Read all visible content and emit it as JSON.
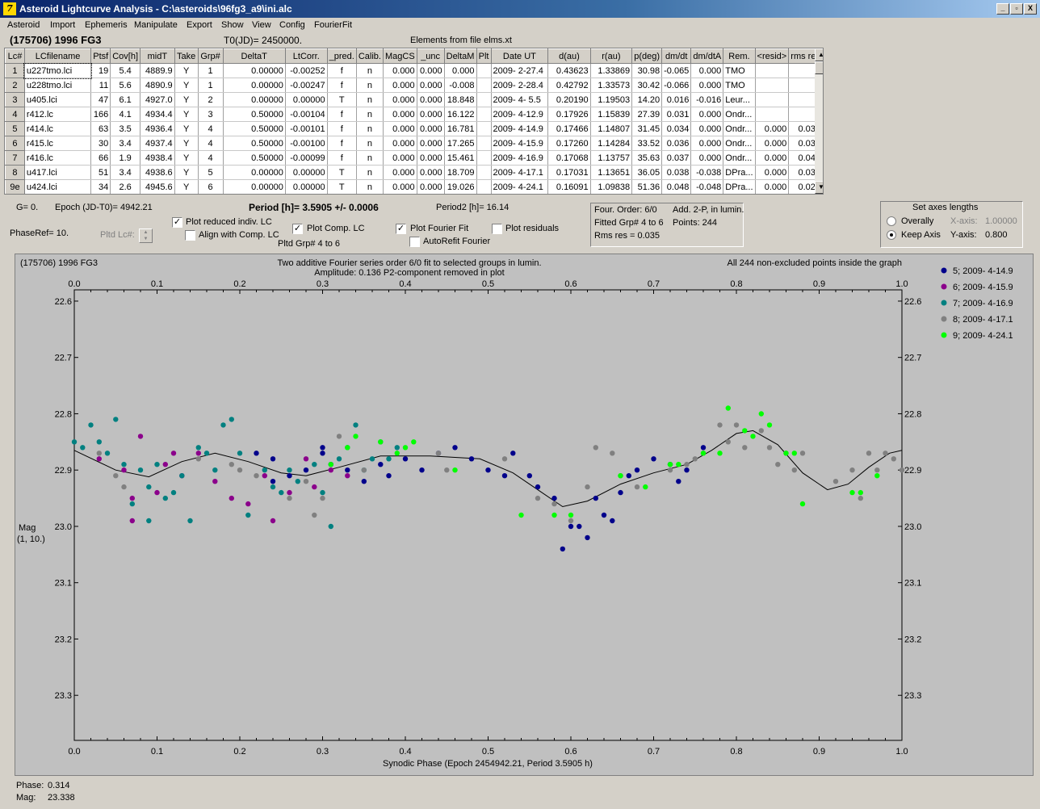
{
  "window": {
    "title": "Asteroid Lightcurve Analysis - C:\\asteroids\\96fg3_a9\\ini.alc",
    "app_icon": "7",
    "minimize": "_",
    "restore": "▫",
    "close": "X"
  },
  "menu": [
    "Asteroid",
    "Import",
    "Ephemeris",
    "Manipulate",
    "Export",
    "Show",
    "View",
    "Config",
    "FourierFit"
  ],
  "info": {
    "asteroid": "(175706) 1996 FG3",
    "t0": "T0(JD)= 2450000.",
    "elements": "Elements from file elms.xt"
  },
  "grid": {
    "headers": [
      "Lc#",
      "LCfilename",
      "Ptsf",
      "Cov[h]",
      "midT",
      "Take",
      "Grp#",
      "DeltaT",
      "LtCorr.",
      "_pred.",
      "Calib.",
      "MagCS",
      "_unc",
      "DeltaM",
      "Plt",
      "Date UT",
      "d(au)",
      "r(au)",
      "p(deg)",
      "dm/dt",
      "dm/dtA",
      "Rem.",
      "<resid>",
      "rms res"
    ],
    "rows": [
      [
        "1",
        "u227tmo.lci",
        "19",
        "5.4",
        "4889.9",
        "Y",
        "1",
        "0.00000",
        "-0.00252",
        "f",
        "n",
        "0.000",
        "0.000",
        "0.000",
        "",
        "2009- 2-27.4",
        "0.43623",
        "1.33869",
        "30.98",
        "-0.065",
        "0.000",
        "TMO",
        "",
        ""
      ],
      [
        "2",
        "u228tmo.lci",
        "11",
        "5.6",
        "4890.9",
        "Y",
        "1",
        "0.00000",
        "-0.00247",
        "f",
        "n",
        "0.000",
        "0.000",
        "-0.008",
        "",
        "2009- 2-28.4",
        "0.42792",
        "1.33573",
        "30.42",
        "-0.066",
        "0.000",
        "TMO",
        "",
        ""
      ],
      [
        "3",
        "u405.lci",
        "47",
        "6.1",
        "4927.0",
        "Y",
        "2",
        "0.00000",
        "0.00000",
        "T",
        "n",
        "0.000",
        "0.000",
        "18.848",
        "",
        "2009- 4- 5.5",
        "0.20190",
        "1.19503",
        "14.20",
        "0.016",
        "-0.016",
        "Leur...",
        "",
        ""
      ],
      [
        "4",
        "r412.lc",
        "166",
        "4.1",
        "4934.4",
        "Y",
        "3",
        "0.50000",
        "-0.00104",
        "f",
        "n",
        "0.000",
        "0.000",
        "16.122",
        "",
        "2009- 4-12.9",
        "0.17926",
        "1.15839",
        "27.39",
        "0.031",
        "0.000",
        "Ondr...",
        "",
        ""
      ],
      [
        "5",
        "r414.lc",
        "63",
        "3.5",
        "4936.4",
        "Y",
        "4",
        "0.50000",
        "-0.00101",
        "f",
        "n",
        "0.000",
        "0.000",
        "16.781",
        "",
        "2009- 4-14.9",
        "0.17466",
        "1.14807",
        "31.45",
        "0.034",
        "0.000",
        "Ondr...",
        "0.000",
        "0.031"
      ],
      [
        "6",
        "r415.lc",
        "30",
        "3.4",
        "4937.4",
        "Y",
        "4",
        "0.50000",
        "-0.00100",
        "f",
        "n",
        "0.000",
        "0.000",
        "17.265",
        "",
        "2009- 4-15.9",
        "0.17260",
        "1.14284",
        "33.52",
        "0.036",
        "0.000",
        "Ondr...",
        "0.000",
        "0.036"
      ],
      [
        "7",
        "r416.lc",
        "66",
        "1.9",
        "4938.4",
        "Y",
        "4",
        "0.50000",
        "-0.00099",
        "f",
        "n",
        "0.000",
        "0.000",
        "15.461",
        "",
        "2009- 4-16.9",
        "0.17068",
        "1.13757",
        "35.63",
        "0.037",
        "0.000",
        "Ondr...",
        "0.000",
        "0.040"
      ],
      [
        "8",
        "u417.lci",
        "51",
        "3.4",
        "4938.6",
        "Y",
        "5",
        "0.00000",
        "0.00000",
        "T",
        "n",
        "0.000",
        "0.000",
        "18.709",
        "",
        "2009- 4-17.1",
        "0.17031",
        "1.13651",
        "36.05",
        "0.038",
        "-0.038",
        "DPra...",
        "0.000",
        "0.030"
      ],
      [
        "9e",
        "u424.lci",
        "34",
        "2.6",
        "4945.6",
        "Y",
        "6",
        "0.00000",
        "0.00000",
        "T",
        "n",
        "0.000",
        "0.000",
        "19.026",
        "",
        "2009- 4-24.1",
        "0.16091",
        "1.09838",
        "51.36",
        "0.048",
        "-0.048",
        "DPra...",
        "0.000",
        "0.024"
      ]
    ]
  },
  "controls": {
    "g": "G= 0.",
    "epoch": "Epoch (JD-T0)= 4942.21",
    "period": "Period [h]= 3.5905 +/- 0.0006",
    "period2": "Period2 [h]= 16.14",
    "phaseref": "PhaseRef= 10.",
    "pltd_lc": "Pltd Lc#:",
    "plot_reduced": "Plot reduced indiv. LC",
    "align_comp": "Align with Comp. LC",
    "plot_comp": "Plot Comp. LC",
    "pltd_grp": "Pltd Grp#  4   to   6",
    "plot_fourier": "Plot Fourier Fit",
    "autorefit": "AutoRefit Fourier",
    "plot_residuals": "Plot residuals",
    "check_mark": "✓",
    "spin_up": "▲",
    "spin_down": "▼"
  },
  "fourier_panel": {
    "order": "Four. Order:  6/0",
    "add": "Add. 2-P, in lumin.",
    "fitted": "Fitted Grp# 4 to 6",
    "points": "Points: 244",
    "rms": "Rms res     = 0.035"
  },
  "axes_panel": {
    "title": "Set axes lengths",
    "overally": "Overally",
    "keep_axis": "Keep Axis",
    "xaxis_label": "X-axis:",
    "xaxis_value": "1.00000",
    "yaxis_label": "Y-axis:",
    "yaxis_value": "0.800"
  },
  "chart_data": {
    "type": "scatter",
    "title_left": "(175706) 1996 FG3",
    "title_center_1": "Two additive Fourier series order 6/0 fit to selected groups in lumin.",
    "title_center_2": "Amplitude: 0.136                  P2-component removed in plot",
    "title_right": "All 244 non-excluded points inside the graph",
    "xlabel": "Synodic Phase (Epoch 2454942.21, Period 3.5905 h)",
    "ylabel_1": "Mag",
    "ylabel_2": "(1, 10.)",
    "xlim": [
      0,
      1
    ],
    "ylim": [
      23.38,
      22.58
    ],
    "y_inverted": true,
    "x_ticks": [
      "0.0",
      "0.1",
      "0.2",
      "0.3",
      "0.4",
      "0.5",
      "0.6",
      "0.7",
      "0.8",
      "0.9",
      "1.0"
    ],
    "y_ticks": [
      "22.6",
      "22.7",
      "22.8",
      "22.9",
      "23.0",
      "23.1",
      "23.2",
      "23.3"
    ],
    "legend_position": "right",
    "fourier_fit": [
      [
        0.0,
        22.865
      ],
      [
        0.05,
        22.9
      ],
      [
        0.09,
        22.912
      ],
      [
        0.13,
        22.885
      ],
      [
        0.17,
        22.87
      ],
      [
        0.21,
        22.885
      ],
      [
        0.25,
        22.905
      ],
      [
        0.28,
        22.91
      ],
      [
        0.32,
        22.895
      ],
      [
        0.37,
        22.875
      ],
      [
        0.43,
        22.875
      ],
      [
        0.49,
        22.88
      ],
      [
        0.53,
        22.905
      ],
      [
        0.56,
        22.935
      ],
      [
        0.59,
        22.965
      ],
      [
        0.62,
        22.955
      ],
      [
        0.66,
        22.925
      ],
      [
        0.7,
        22.905
      ],
      [
        0.74,
        22.89
      ],
      [
        0.77,
        22.865
      ],
      [
        0.8,
        22.835
      ],
      [
        0.82,
        22.83
      ],
      [
        0.85,
        22.855
      ],
      [
        0.88,
        22.905
      ],
      [
        0.91,
        22.935
      ],
      [
        0.935,
        22.925
      ],
      [
        0.96,
        22.895
      ],
      [
        0.985,
        22.87
      ],
      [
        1.0,
        22.865
      ]
    ],
    "series": [
      {
        "name": "5; 2009- 4-14.9",
        "color": "#00008b",
        "points": [
          [
            0.22,
            22.87
          ],
          [
            0.24,
            22.88
          ],
          [
            0.26,
            22.91
          ],
          [
            0.28,
            22.9
          ],
          [
            0.3,
            22.87
          ],
          [
            0.31,
            22.89
          ],
          [
            0.33,
            22.9
          ],
          [
            0.35,
            22.92
          ],
          [
            0.37,
            22.89
          ],
          [
            0.38,
            22.91
          ],
          [
            0.4,
            22.88
          ],
          [
            0.42,
            22.9
          ],
          [
            0.44,
            22.87
          ],
          [
            0.46,
            22.86
          ],
          [
            0.48,
            22.88
          ],
          [
            0.5,
            22.9
          ],
          [
            0.52,
            22.91
          ],
          [
            0.53,
            22.87
          ],
          [
            0.55,
            22.91
          ],
          [
            0.56,
            22.93
          ],
          [
            0.58,
            22.95
          ],
          [
            0.59,
            23.04
          ],
          [
            0.6,
            23.0
          ],
          [
            0.61,
            23.0
          ],
          [
            0.62,
            23.02
          ],
          [
            0.63,
            22.95
          ],
          [
            0.64,
            22.98
          ],
          [
            0.65,
            22.99
          ],
          [
            0.66,
            22.94
          ],
          [
            0.67,
            22.91
          ],
          [
            0.68,
            22.9
          ],
          [
            0.7,
            22.88
          ],
          [
            0.72,
            22.89
          ],
          [
            0.73,
            22.92
          ],
          [
            0.74,
            22.9
          ],
          [
            0.76,
            22.86
          ],
          [
            0.24,
            22.92
          ],
          [
            0.3,
            22.86
          ]
        ]
      },
      {
        "name": "6; 2009- 4-15.9",
        "color": "#8b008b",
        "points": [
          [
            0.03,
            22.88
          ],
          [
            0.06,
            22.9
          ],
          [
            0.07,
            22.95
          ],
          [
            0.08,
            22.84
          ],
          [
            0.1,
            22.94
          ],
          [
            0.11,
            22.89
          ],
          [
            0.12,
            22.87
          ],
          [
            0.13,
            22.91
          ],
          [
            0.15,
            22.87
          ],
          [
            0.17,
            22.92
          ],
          [
            0.19,
            22.95
          ],
          [
            0.21,
            22.96
          ],
          [
            0.23,
            22.91
          ],
          [
            0.26,
            22.94
          ],
          [
            0.28,
            22.88
          ],
          [
            0.29,
            22.93
          ],
          [
            0.31,
            22.9
          ],
          [
            0.33,
            22.91
          ],
          [
            0.07,
            22.99
          ],
          [
            0.24,
            22.99
          ]
        ]
      },
      {
        "name": "7; 2009- 4-16.9",
        "color": "#008080",
        "points": [
          [
            0.0,
            22.85
          ],
          [
            0.01,
            22.86
          ],
          [
            0.02,
            22.82
          ],
          [
            0.03,
            22.85
          ],
          [
            0.04,
            22.87
          ],
          [
            0.05,
            22.81
          ],
          [
            0.06,
            22.89
          ],
          [
            0.07,
            22.96
          ],
          [
            0.08,
            22.9
          ],
          [
            0.09,
            22.93
          ],
          [
            0.1,
            22.89
          ],
          [
            0.11,
            22.95
          ],
          [
            0.12,
            22.94
          ],
          [
            0.13,
            22.91
          ],
          [
            0.14,
            22.99
          ],
          [
            0.15,
            22.86
          ],
          [
            0.16,
            22.87
          ],
          [
            0.17,
            22.9
          ],
          [
            0.18,
            22.82
          ],
          [
            0.19,
            22.81
          ],
          [
            0.2,
            22.87
          ],
          [
            0.21,
            22.98
          ],
          [
            0.23,
            22.9
          ],
          [
            0.24,
            22.93
          ],
          [
            0.25,
            22.94
          ],
          [
            0.27,
            22.92
          ],
          [
            0.29,
            22.89
          ],
          [
            0.3,
            22.94
          ],
          [
            0.31,
            23.0
          ],
          [
            0.32,
            22.88
          ],
          [
            0.33,
            22.86
          ],
          [
            0.34,
            22.82
          ],
          [
            0.35,
            22.9
          ],
          [
            0.36,
            22.88
          ],
          [
            0.37,
            22.85
          ],
          [
            0.38,
            22.88
          ],
          [
            0.39,
            22.86
          ],
          [
            0.26,
            22.9
          ],
          [
            0.09,
            22.99
          ]
        ]
      },
      {
        "name": "8; 2009- 4-17.1",
        "color": "#808080",
        "points": [
          [
            0.03,
            22.87
          ],
          [
            0.05,
            22.91
          ],
          [
            0.06,
            22.93
          ],
          [
            0.15,
            22.88
          ],
          [
            0.19,
            22.89
          ],
          [
            0.2,
            22.9
          ],
          [
            0.22,
            22.91
          ],
          [
            0.26,
            22.95
          ],
          [
            0.28,
            22.92
          ],
          [
            0.3,
            22.95
          ],
          [
            0.32,
            22.84
          ],
          [
            0.35,
            22.9
          ],
          [
            0.44,
            22.87
          ],
          [
            0.45,
            22.9
          ],
          [
            0.52,
            22.88
          ],
          [
            0.56,
            22.95
          ],
          [
            0.58,
            22.96
          ],
          [
            0.6,
            22.99
          ],
          [
            0.62,
            22.93
          ],
          [
            0.63,
            22.86
          ],
          [
            0.65,
            22.87
          ],
          [
            0.66,
            22.91
          ],
          [
            0.68,
            22.93
          ],
          [
            0.72,
            22.9
          ],
          [
            0.75,
            22.88
          ],
          [
            0.76,
            22.87
          ],
          [
            0.78,
            22.82
          ],
          [
            0.79,
            22.85
          ],
          [
            0.8,
            22.82
          ],
          [
            0.81,
            22.86
          ],
          [
            0.83,
            22.83
          ],
          [
            0.84,
            22.86
          ],
          [
            0.85,
            22.89
          ],
          [
            0.86,
            22.87
          ],
          [
            0.87,
            22.9
          ],
          [
            0.88,
            22.87
          ],
          [
            0.92,
            22.92
          ],
          [
            0.94,
            22.9
          ],
          [
            0.95,
            22.95
          ],
          [
            0.96,
            22.87
          ],
          [
            0.97,
            22.9
          ],
          [
            0.98,
            22.87
          ],
          [
            0.99,
            22.88
          ],
          [
            1.0,
            22.9
          ],
          [
            0.74,
            22.89
          ],
          [
            0.29,
            22.98
          ]
        ]
      },
      {
        "name": "9; 2009- 4-24.1",
        "color": "#00ff00",
        "points": [
          [
            0.31,
            22.89
          ],
          [
            0.33,
            22.86
          ],
          [
            0.34,
            22.84
          ],
          [
            0.37,
            22.85
          ],
          [
            0.39,
            22.87
          ],
          [
            0.4,
            22.86
          ],
          [
            0.41,
            22.85
          ],
          [
            0.46,
            22.9
          ],
          [
            0.54,
            22.98
          ],
          [
            0.58,
            22.98
          ],
          [
            0.6,
            22.98
          ],
          [
            0.66,
            22.91
          ],
          [
            0.69,
            22.93
          ],
          [
            0.72,
            22.89
          ],
          [
            0.73,
            22.89
          ],
          [
            0.76,
            22.87
          ],
          [
            0.78,
            22.87
          ],
          [
            0.79,
            22.79
          ],
          [
            0.81,
            22.83
          ],
          [
            0.82,
            22.84
          ],
          [
            0.83,
            22.8
          ],
          [
            0.84,
            22.82
          ],
          [
            0.86,
            22.87
          ],
          [
            0.87,
            22.87
          ],
          [
            0.88,
            22.96
          ],
          [
            0.94,
            22.94
          ],
          [
            0.95,
            22.94
          ],
          [
            0.97,
            22.91
          ]
        ]
      }
    ]
  },
  "status": {
    "phase_label": "Phase:",
    "phase_value": "0.314",
    "mag_label": "Mag:",
    "mag_value": "23.338"
  }
}
